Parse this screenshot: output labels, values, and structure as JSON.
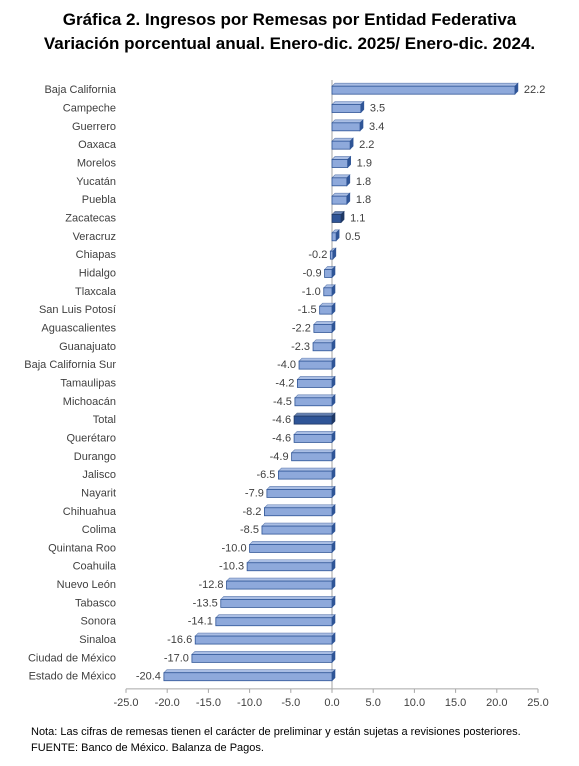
{
  "title": {
    "line1": "Gráfica 2. Ingresos por Remesas por Entidad Federativa",
    "line2": "Variación porcentual anual. Enero-dic. 2025/ Enero-dic. 2024."
  },
  "chart_data": {
    "type": "bar",
    "orientation": "horizontal",
    "categories": [
      "Baja California",
      "Campeche",
      "Guerrero",
      "Oaxaca",
      "Morelos",
      "Yucatán",
      "Puebla",
      "Zacatecas",
      "Veracruz",
      "Chiapas",
      "Hidalgo",
      "Tlaxcala",
      "San Luis Potosí",
      "Aguascalientes",
      "Guanajuato",
      "Baja California Sur",
      "Tamaulipas",
      "Michoacán",
      "Total",
      "Querétaro",
      "Durango",
      "Jalisco",
      "Nayarit",
      "Chihuahua",
      "Colima",
      "Quintana Roo",
      "Coahuila",
      "Nuevo León",
      "Tabasco",
      "Sonora",
      "Sinaloa",
      "Ciudad de México",
      "Estado de México"
    ],
    "values": [
      22.2,
      3.5,
      3.4,
      2.2,
      1.9,
      1.8,
      1.8,
      1.1,
      0.5,
      -0.2,
      -0.9,
      -1.0,
      -1.5,
      -2.2,
      -2.3,
      -4.0,
      -4.2,
      -4.5,
      -4.6,
      -4.6,
      -4.9,
      -6.5,
      -7.9,
      -8.2,
      -8.5,
      -10.0,
      -10.3,
      -12.8,
      -13.5,
      -14.1,
      -16.6,
      -17.0,
      -20.4
    ],
    "value_labels": [
      "22.2",
      "3.5",
      "3.4",
      "2.2",
      "1.9",
      "1.8",
      "1.8",
      "1.1",
      "0.5",
      "-0.2",
      "-0.9",
      "-1.0",
      "-1.5",
      "-2.2",
      "-2.3",
      "-4.0",
      "-4.2",
      "-4.5",
      "-4.6",
      "-4.6",
      "-4.9",
      "-6.5",
      "-7.9",
      "-8.2",
      "-8.5",
      "-10.0",
      "-10.3",
      "-12.8",
      "-13.5",
      "-14.1",
      "-16.6",
      "-17.0",
      "-20.4"
    ],
    "highlighted": [
      "Zacatecas",
      "Total"
    ],
    "xlim": [
      -25,
      25
    ],
    "xticks": [
      -25,
      -20,
      -15,
      -10,
      -5,
      0,
      5,
      10,
      15,
      20,
      25
    ],
    "xtick_labels": [
      "-25.0",
      "-20.0",
      "-15.0",
      "-10.0",
      "-5.0",
      "0.0",
      "5.0",
      "10.0",
      "15.0",
      "20.0",
      "25.0"
    ],
    "grid": false,
    "colors": {
      "bar": "#8EA9DB",
      "bar_edge": "#2F5597",
      "highlight": "#2F5597",
      "highlight_edge": "#1F3864",
      "axis": "#A6A6A6"
    }
  },
  "notes": {
    "note": "Nota: Las cifras de remesas tienen el carácter de preliminar y están sujetas a revisiones posteriores.",
    "source": "FUENTE: Banco de México. Balanza de Pagos."
  }
}
